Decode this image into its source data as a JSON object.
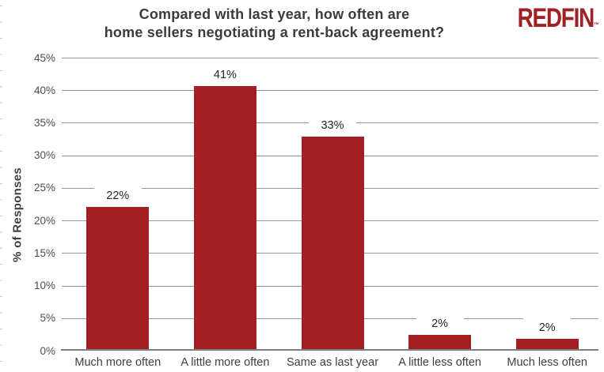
{
  "header": {
    "title_line1": "Compared with last year, how often are",
    "title_line2": "home sellers negotiating a rent-back agreement?",
    "logo_text": "REDFIN",
    "logo_trademark": "™",
    "logo_color": "#A02024"
  },
  "chart_data": {
    "type": "bar",
    "title": "Compared with last year, how often are home sellers negotiating a rent-back agreement?",
    "categories": [
      "Much more often",
      "A little more often",
      "Same as last year",
      "A little less often",
      "Much less often"
    ],
    "values": [
      22,
      41,
      33,
      2,
      2
    ],
    "value_labels": [
      "22%",
      "41%",
      "33%",
      "2%",
      "2%"
    ],
    "bar_heights_pct": [
      22.1,
      40.6,
      32.9,
      2.4,
      1.8
    ],
    "xlabel": "",
    "ylabel": "% of Responses",
    "ylim": [
      0,
      45
    ],
    "ytick_step": 5,
    "yticks": [
      "45%",
      "40%",
      "35%",
      "30%",
      "25%",
      "20%",
      "15%",
      "10%",
      "5%",
      "0%"
    ],
    "grid": true,
    "legend": "none",
    "bar_color": "#A21F23",
    "gridline_color": "#9A9A9A",
    "axis_line_color": "#7F7F7F",
    "label_text_color": "#262626"
  }
}
